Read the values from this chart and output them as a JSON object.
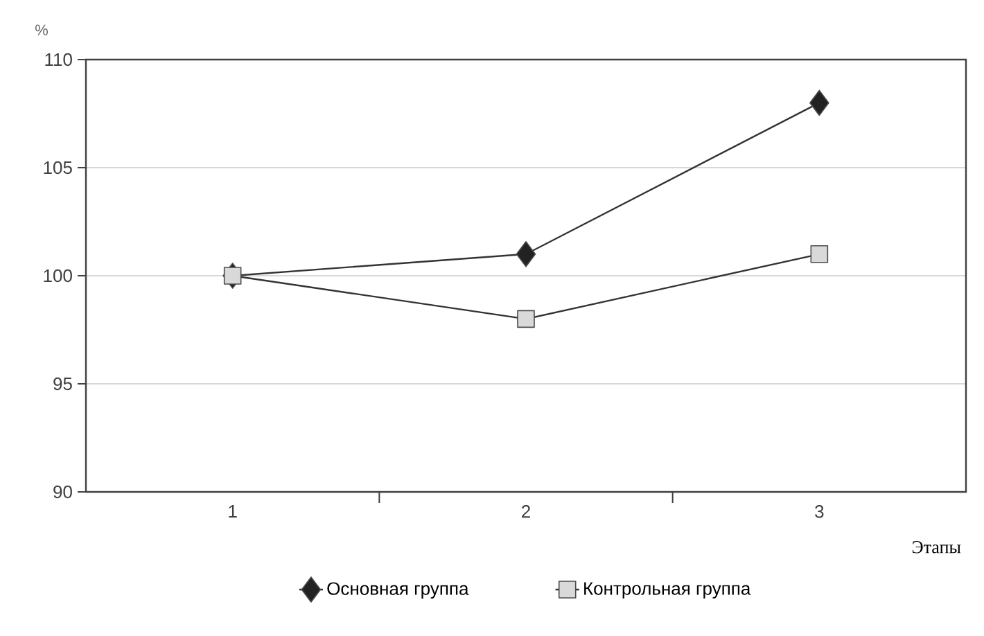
{
  "chart_data": {
    "type": "line",
    "ylabel": "%",
    "xlabel": "Этапы",
    "categories": [
      "1",
      "2",
      "3"
    ],
    "series": [
      {
        "name": "Основная группа",
        "color": "#222222",
        "marker": "diamond",
        "values": [
          100,
          101,
          108
        ]
      },
      {
        "name": "Контрольная группа",
        "color": "#d9d9d9",
        "marker": "square",
        "values": [
          100,
          98,
          101
        ]
      }
    ],
    "ylim": [
      90,
      110
    ],
    "yticks": [
      90,
      95,
      100,
      105,
      110
    ],
    "grid": "y",
    "legend": "bottom",
    "line_style": "solid"
  }
}
